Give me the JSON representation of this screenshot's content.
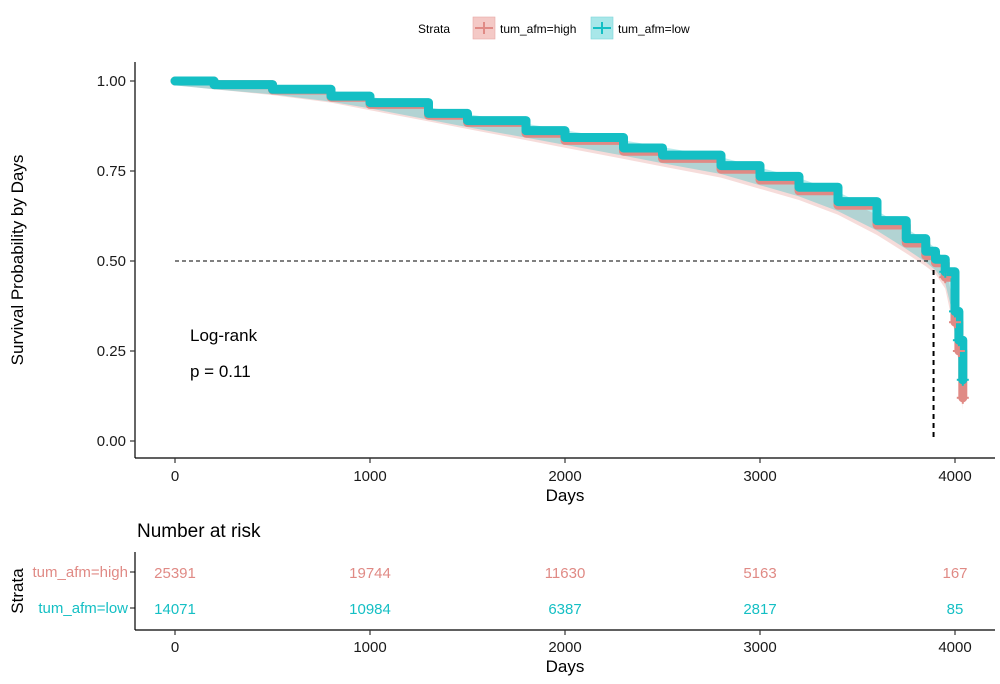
{
  "chart_data": [
    {
      "type": "line",
      "subtype": "kaplan-meier",
      "title": "",
      "xlabel": "Days",
      "ylabel": "Survival Probability by Days",
      "xlim": [
        -100,
        4100
      ],
      "ylim": [
        0,
        1.04
      ],
      "xticks": [
        0,
        1000,
        2000,
        3000,
        4000
      ],
      "yticks": [
        0.0,
        0.25,
        0.5,
        0.75,
        1.0
      ],
      "ytick_labels": [
        "0.00",
        "0.25",
        "0.50",
        "0.75",
        "1.00"
      ],
      "grid": false,
      "legend": {
        "placement": "top",
        "title": "Strata",
        "entries": [
          "tum_afm=high",
          "tum_afm=low"
        ]
      },
      "median_line": {
        "x": 3890,
        "y": 0.5
      },
      "annotations": {
        "test": "Log-rank",
        "pvalue": "p = 0.11"
      },
      "series": [
        {
          "name": "tum_afm=high",
          "color": "#e08a85",
          "x": [
            0,
            200,
            500,
            800,
            1000,
            1300,
            1500,
            1800,
            2000,
            2300,
            2500,
            2800,
            3000,
            3200,
            3400,
            3600,
            3750,
            3850,
            3900,
            3950,
            4000,
            4020,
            4040
          ],
          "y": [
            1.0,
            0.99,
            0.975,
            0.955,
            0.935,
            0.905,
            0.885,
            0.855,
            0.835,
            0.805,
            0.785,
            0.755,
            0.725,
            0.695,
            0.655,
            0.6,
            0.55,
            0.515,
            0.495,
            0.455,
            0.33,
            0.25,
            0.12
          ]
        },
        {
          "name": "tum_afm=low",
          "color": "#14bfc4",
          "x": [
            0,
            200,
            500,
            800,
            1000,
            1300,
            1500,
            1800,
            2000,
            2300,
            2500,
            2800,
            3000,
            3200,
            3400,
            3600,
            3750,
            3850,
            3900,
            3950,
            4000,
            4020,
            4040
          ],
          "y": [
            1.0,
            0.99,
            0.977,
            0.958,
            0.94,
            0.91,
            0.89,
            0.862,
            0.843,
            0.814,
            0.794,
            0.765,
            0.735,
            0.705,
            0.665,
            0.612,
            0.562,
            0.527,
            0.505,
            0.47,
            0.36,
            0.28,
            0.17
          ]
        }
      ]
    },
    {
      "type": "table",
      "title": "Number at risk",
      "xlabel": "Days",
      "ylabel": "Strata",
      "xticks": [
        0,
        1000,
        2000,
        3000,
        4000
      ],
      "rows": [
        {
          "label": "tum_afm=high",
          "color": "#e08a85",
          "x": [
            0,
            1000,
            2000,
            3000,
            4000
          ],
          "values": [
            "25391",
            "19744",
            "11630",
            "5163",
            "167"
          ]
        },
        {
          "label": "tum_afm=low",
          "color": "#14bfc4",
          "x": [
            0,
            1000,
            2000,
            3000,
            4000
          ],
          "values": [
            "14071",
            "10984",
            "6387",
            "2817",
            "85"
          ]
        }
      ]
    }
  ]
}
